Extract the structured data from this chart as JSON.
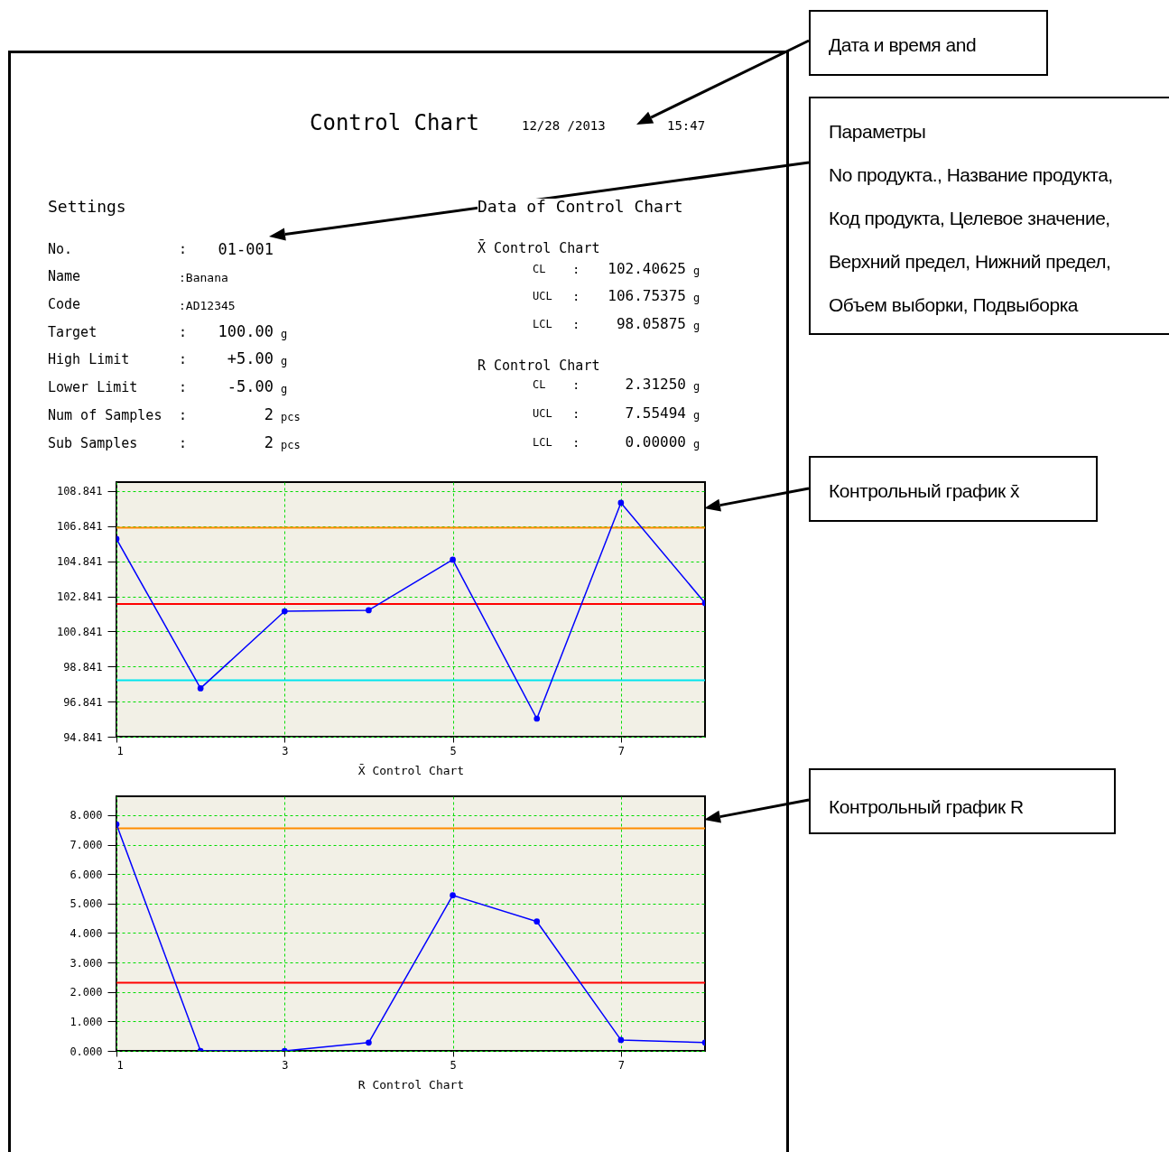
{
  "chart_data": [
    {
      "type": "other",
      "title": "Control Chart",
      "annotations": [
        "12/28 /2013",
        "15:47",
        "Settings",
        "Data of Control Chart",
        "No.",
        ":",
        "01-001",
        "Name",
        ":Banana",
        "Code",
        ":AD12345",
        "Target",
        ":",
        "100.00",
        "g",
        "High Limit",
        ":",
        "+5.00",
        "g",
        "Lower Limit",
        ":",
        "-5.00",
        "g",
        "Num of Samples",
        ":",
        "2",
        "pcs",
        "Sub Samples",
        ":",
        "2",
        "pcs",
        "X̄ Control Chart",
        "CL",
        ":",
        "102.40625",
        "g",
        "UCL",
        ":",
        "106.75375",
        "g",
        "LCL",
        ":",
        "98.05875",
        "g",
        "R Control Chart",
        "CL",
        ":",
        "2.31250",
        "g",
        "UCL",
        ":",
        "7.55494",
        "g",
        "LCL",
        ":",
        "0.00000",
        "g",
        "Дата и время and",
        "Параметры",
        "No продукта., Название продукта,",
        "Код продукта, Целевое значение,",
        "Верхний предел, Нижний предел,",
        "Объем выборки, Подвыборка",
        "Контрольный график x̄",
        "Контрольный график R"
      ]
    },
    {
      "type": "line",
      "xlabel": "X̄ Control Chart",
      "x": [
        1,
        2,
        3,
        4,
        5,
        6,
        7,
        8
      ],
      "series": [
        {
          "color": "#0000ff",
          "values": [
            106.11,
            97.6,
            101.99,
            102.05,
            104.93,
            95.87,
            108.17,
            102.46
          ]
        }
      ],
      "xlim": [
        1,
        8
      ],
      "xticks": [
        1,
        3,
        5,
        7
      ],
      "ylim": [
        94.841,
        109.35
      ],
      "yticks": [
        94.841,
        96.841,
        98.841,
        100.841,
        102.841,
        104.841,
        106.841,
        108.841
      ],
      "ref_lines": [
        {
          "axis": "y",
          "value": 106.75375,
          "color": "#ff8c00"
        },
        {
          "axis": "y",
          "value": 102.40625,
          "color": "#ff0000"
        },
        {
          "axis": "y",
          "value": 98.05875,
          "color": "#00e5ee"
        }
      ],
      "grid": true,
      "marker": "circle",
      "line_style": "solid"
    },
    {
      "type": "line",
      "xlabel": "R Control Chart",
      "x": [
        1,
        2,
        3,
        4,
        5,
        6,
        7,
        8
      ],
      "series": [
        {
          "color": "#0000ff",
          "values": [
            7.69,
            0,
            0,
            0.28,
            5.28,
            4.39,
            0.37,
            0.28
          ]
        }
      ],
      "xlim": [
        1,
        8
      ],
      "xticks": [
        1,
        3,
        5,
        7
      ],
      "ylim": [
        0,
        8.64
      ],
      "yticks": [
        {
          "value": 0,
          "label": "0.000"
        },
        {
          "value": 1,
          "label": "1.000"
        },
        {
          "value": 2,
          "label": "2.000"
        },
        {
          "value": 3,
          "label": "3.000"
        },
        {
          "value": 4,
          "label": "4.000"
        },
        {
          "value": 5,
          "label": "5.000"
        },
        {
          "value": 6,
          "label": "6.000"
        },
        {
          "value": 7,
          "label": "7.000"
        },
        {
          "value": 8,
          "label": "8.000"
        }
      ],
      "ref_lines": [
        {
          "axis": "y",
          "value": 7.55494,
          "color": "#ff8c00"
        },
        {
          "axis": "y",
          "value": 2.3125,
          "color": "#ff0000"
        }
      ],
      "grid": true,
      "marker": "circle",
      "line_style": "solid"
    }
  ]
}
